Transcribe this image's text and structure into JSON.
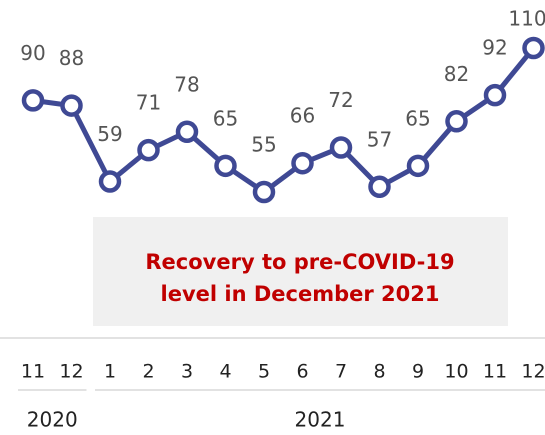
{
  "chart_data": {
    "type": "line",
    "categories": [
      "11",
      "12",
      "1",
      "2",
      "3",
      "4",
      "5",
      "6",
      "7",
      "8",
      "9",
      "10",
      "11",
      "12"
    ],
    "values": [
      90,
      88,
      59,
      71,
      78,
      65,
      55,
      66,
      72,
      57,
      65,
      82,
      92,
      110
    ],
    "color": "#3f4994",
    "years": [
      "2020",
      "2021"
    ],
    "annotation": [
      "Recovery to pre-COVID-19",
      "level in December 2021"
    ]
  }
}
